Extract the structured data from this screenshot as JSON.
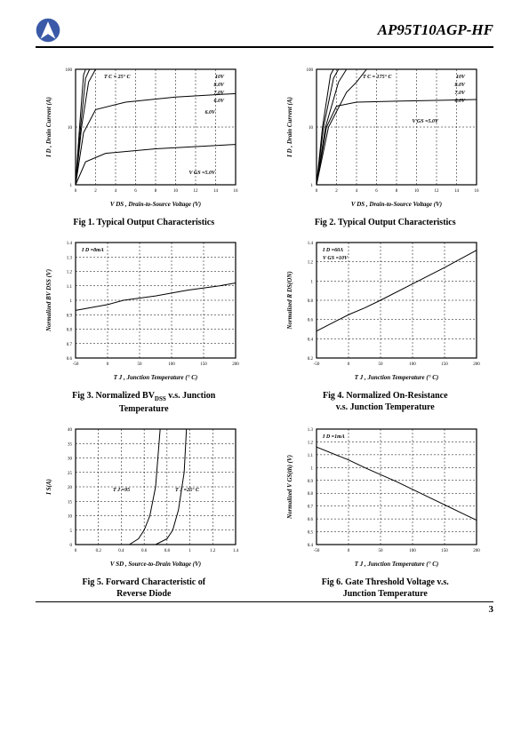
{
  "header": {
    "part_number": "AP95T10AGP-HF",
    "page_number": "3"
  },
  "logo": {
    "bg": "#3a5aa8",
    "fg": "#ffffff"
  },
  "figs": {
    "fig1": {
      "caption": "Fig 1. Typical Output Characteristics",
      "xlabel": "V DS , Drain-to-Source Voltage (V)",
      "ylabel": "I D , Drain Current (A)",
      "annot_temp": "T C = 25° C",
      "annot_right": [
        "10V",
        "8.0V",
        "7.0V",
        "6.0V"
      ],
      "annot_bottom": "V GS =5.0V",
      "type": "line",
      "yscale": "log",
      "xlim": [
        0,
        16
      ],
      "xticks": [
        0,
        2,
        4,
        6,
        8,
        10,
        12,
        14,
        16
      ],
      "ylim": [
        1,
        100
      ],
      "yticks": [
        1,
        10,
        100
      ],
      "grid_color": "#000000",
      "line_color": "#000000",
      "bg": "#ffffff",
      "title_fontsize": 7,
      "tick_fontsize": 5,
      "series": [
        {
          "label": "10V",
          "pts": [
            [
              0,
              1
            ],
            [
              0.4,
              10
            ],
            [
              0.8,
              80
            ],
            [
              1.0,
              100
            ]
          ]
        },
        {
          "label": "8.0V",
          "pts": [
            [
              0,
              1
            ],
            [
              0.5,
              10
            ],
            [
              1.0,
              70
            ],
            [
              1.4,
              100
            ]
          ]
        },
        {
          "label": "7.0V",
          "pts": [
            [
              0,
              1
            ],
            [
              0.6,
              10
            ],
            [
              1.3,
              60
            ],
            [
              2.0,
              100
            ]
          ]
        },
        {
          "label": "6.0V",
          "pts": [
            [
              0,
              1
            ],
            [
              0.8,
              8
            ],
            [
              2,
              20
            ],
            [
              5,
              27
            ],
            [
              10,
              33
            ],
            [
              16,
              38
            ]
          ]
        },
        {
          "label": "5.0V",
          "pts": [
            [
              0,
              1
            ],
            [
              1,
              2.5
            ],
            [
              3,
              3.5
            ],
            [
              8,
              4.2
            ],
            [
              16,
              5
            ]
          ]
        }
      ]
    },
    "fig2": {
      "caption": "Fig 2. Typical Output Characteristics",
      "xlabel": "V DS , Drain-to-Source Voltage (V)",
      "ylabel": "I D , Drain Current (A)",
      "annot_temp": "T C = 175° C",
      "annot_right": [
        "10V",
        "8.0V",
        "7.0V",
        "6.0V"
      ],
      "annot_mid": "V GS =5.0V",
      "type": "line",
      "yscale": "log",
      "xlim": [
        0,
        16
      ],
      "xticks": [
        0,
        2,
        4,
        6,
        8,
        10,
        12,
        14,
        16
      ],
      "ylim": [
        1,
        100
      ],
      "yticks": [
        1,
        10,
        100
      ],
      "grid_color": "#000000",
      "line_color": "#000000",
      "bg": "#ffffff",
      "title_fontsize": 7,
      "tick_fontsize": 5,
      "series": [
        {
          "label": "10V",
          "pts": [
            [
              0,
              1
            ],
            [
              0.6,
              10
            ],
            [
              1.4,
              80
            ],
            [
              1.7,
              100
            ]
          ]
        },
        {
          "label": "8.0V",
          "pts": [
            [
              0,
              1
            ],
            [
              0.7,
              10
            ],
            [
              1.7,
              70
            ],
            [
              2.2,
              100
            ]
          ]
        },
        {
          "label": "7.0V",
          "pts": [
            [
              0,
              1
            ],
            [
              0.9,
              10
            ],
            [
              2.2,
              60
            ],
            [
              3,
              100
            ]
          ]
        },
        {
          "label": "6.0V",
          "pts": [
            [
              0,
              1
            ],
            [
              1.2,
              10
            ],
            [
              3,
              40
            ],
            [
              4,
              60
            ],
            [
              5,
              100
            ]
          ]
        },
        {
          "label": "5.0V",
          "pts": [
            [
              0,
              1
            ],
            [
              1,
              10
            ],
            [
              2,
              23
            ],
            [
              4,
              27
            ],
            [
              8,
              28
            ],
            [
              16,
              30
            ]
          ]
        }
      ]
    },
    "fig3": {
      "caption_l1": "Fig 3. Normalized BV",
      "caption_sub": "DSS",
      "caption_l1b": "  v.s. Junction",
      "caption_l2": "Temperature",
      "xlabel": "T J , Junction Temperature (° C)",
      "ylabel": "Normalized BV DSS (V)",
      "annot": "I D =8mA",
      "type": "line",
      "xlim": [
        -50,
        200
      ],
      "xticks": [
        -50,
        0,
        50,
        100,
        150,
        200
      ],
      "ylim": [
        0.6,
        1.4
      ],
      "yticks": [
        0.6,
        0.7,
        0.8,
        0.9,
        1.0,
        1.1,
        1.2,
        1.3,
        1.4
      ],
      "grid_color": "#000000",
      "line_color": "#000000",
      "bg": "#ffffff",
      "title_fontsize": 7,
      "tick_fontsize": 5,
      "series": [
        {
          "pts": [
            [
              -50,
              0.93
            ],
            [
              0,
              0.97
            ],
            [
              25,
              1.0
            ],
            [
              75,
              1.03
            ],
            [
              125,
              1.07
            ],
            [
              175,
              1.1
            ],
            [
              200,
              1.12
            ]
          ]
        }
      ]
    },
    "fig4": {
      "caption_l1": "Fig 4. Normalized On-Resistance",
      "caption_l2": "v.s. Junction Temperature",
      "xlabel": "T J , Junction Temperature (° C)",
      "ylabel": "Normalized R DS(ON)",
      "annot1": "I D =60A",
      "annot2": "V GS =10V",
      "type": "line",
      "xlim": [
        -50,
        200
      ],
      "xticks": [
        -50,
        0,
        50,
        100,
        150,
        200
      ],
      "ylim": [
        0.2,
        1.4
      ],
      "yticks": [
        0.2,
        0.4,
        0.6,
        0.8,
        1.0,
        1.2,
        1.4
      ],
      "grid_color": "#000000",
      "line_color": "#000000",
      "bg": "#ffffff",
      "title_fontsize": 7,
      "tick_fontsize": 5,
      "series": [
        {
          "pts": [
            [
              -50,
              0.48
            ],
            [
              0,
              0.65
            ],
            [
              25,
              0.72
            ],
            [
              50,
              0.8
            ],
            [
              100,
              0.97
            ],
            [
              150,
              1.14
            ],
            [
              175,
              1.23
            ],
            [
              200,
              1.32
            ]
          ]
        }
      ]
    },
    "fig5": {
      "caption_l1": "Fig 5. Forward Characteristic of",
      "caption_l2": "Reverse Diode",
      "xlabel": "V SD , Source-to-Drain Voltage (V)",
      "ylabel": "I S(A)",
      "annot_l": "T J =95",
      "annot_r": "T J =25° C",
      "type": "line",
      "xlim": [
        0,
        1.4
      ],
      "xticks": [
        0,
        0.2,
        0.4,
        0.6,
        0.8,
        1.0,
        1.2,
        1.4
      ],
      "ylim": [
        0,
        40
      ],
      "yticks": [
        0,
        5,
        10,
        15,
        20,
        25,
        30,
        35,
        40
      ],
      "grid_color": "#000000",
      "line_color": "#000000",
      "bg": "#ffffff",
      "title_fontsize": 7,
      "tick_fontsize": 5,
      "series": [
        {
          "pts": [
            [
              0.47,
              0
            ],
            [
              0.55,
              2
            ],
            [
              0.6,
              5
            ],
            [
              0.65,
              10
            ],
            [
              0.7,
              20
            ],
            [
              0.73,
              35
            ],
            [
              0.74,
              40
            ]
          ]
        },
        {
          "pts": [
            [
              0.7,
              0
            ],
            [
              0.8,
              2
            ],
            [
              0.85,
              5
            ],
            [
              0.9,
              12
            ],
            [
              0.95,
              25
            ],
            [
              0.97,
              40
            ]
          ]
        }
      ]
    },
    "fig6": {
      "caption_l1": "Fig 6. Gate Threshold Voltage v.s.",
      "caption_l2": "Junction Temperature",
      "xlabel": "T J , Junction Temperature (° C)",
      "ylabel": "Normalized V GS(th) (V)",
      "annot": "I D =1mA",
      "type": "line",
      "xlim": [
        -50,
        200
      ],
      "xticks": [
        -50,
        0,
        50,
        100,
        150,
        200
      ],
      "ylim": [
        0.4,
        1.3
      ],
      "yticks": [
        0.4,
        0.5,
        0.6,
        0.7,
        0.8,
        0.9,
        1.0,
        1.1,
        1.2,
        1.3
      ],
      "grid_color": "#000000",
      "line_color": "#000000",
      "bg": "#ffffff",
      "title_fontsize": 7,
      "tick_fontsize": 5,
      "series": [
        {
          "pts": [
            [
              -50,
              1.16
            ],
            [
              0,
              1.06
            ],
            [
              25,
              1.0
            ],
            [
              75,
              0.89
            ],
            [
              125,
              0.77
            ],
            [
              175,
              0.65
            ],
            [
              200,
              0.59
            ]
          ]
        }
      ]
    }
  }
}
